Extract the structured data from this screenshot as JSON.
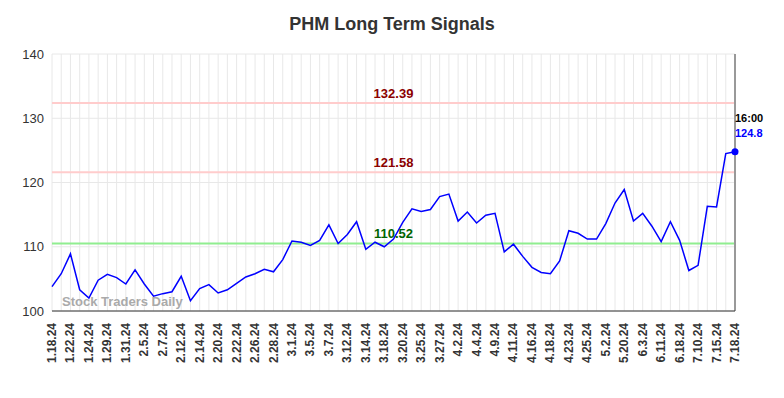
{
  "chart_data": {
    "type": "line",
    "title": "PHM Long Term Signals",
    "watermark": "Stock Traders Daily",
    "last_time": "16:00",
    "color": "#0000ff",
    "grid": true,
    "ylim": [
      100,
      140
    ],
    "yticks": [
      100,
      110,
      120,
      130,
      140
    ],
    "categories": [
      "1.18.24",
      null,
      "1.22.24",
      null,
      "1.24.24",
      null,
      "1.29.24",
      null,
      "1.31.24",
      null,
      "2.5.24",
      null,
      "2.7.24",
      null,
      "2.12.24",
      null,
      "2.14.24",
      null,
      "2.20.24",
      null,
      "2.22.24",
      null,
      "2.26.24",
      null,
      "2.28.24",
      null,
      "3.1.24",
      null,
      "3.5.24",
      null,
      "3.7.24",
      null,
      "3.12.24",
      null,
      "3.14.24",
      null,
      "3.18.24",
      null,
      "3.20.24",
      null,
      "3.25.24",
      null,
      "3.27.24",
      null,
      "4.2.24",
      null,
      "4.4.24",
      null,
      "4.9.24",
      null,
      "4.11.24",
      null,
      "4.16.24",
      null,
      "4.18.24",
      null,
      "4.23.24",
      null,
      "4.25.24",
      null,
      "5.2.24",
      null,
      "5.20.24",
      null,
      "6.3.24",
      null,
      "6.11.24",
      null,
      "6.18.24",
      null,
      "7.10.24",
      null,
      "7.15.24",
      null,
      "7.18.24"
    ],
    "values": [
      103.8,
      105.8,
      108.9,
      103.3,
      102.0,
      104.8,
      105.7,
      105.2,
      104.2,
      106.4,
      104.2,
      102.3,
      102.7,
      103.0,
      105.4,
      101.6,
      103.5,
      104.1,
      102.8,
      103.3,
      104.3,
      105.3,
      105.8,
      106.5,
      106.1,
      108.0,
      110.9,
      110.7,
      110.2,
      111.0,
      113.4,
      110.5,
      111.9,
      113.9,
      109.6,
      110.7,
      110.0,
      111.2,
      113.8,
      115.9,
      115.5,
      115.8,
      117.8,
      118.2,
      114.0,
      115.4,
      113.7,
      114.9,
      115.2,
      109.2,
      110.4,
      108.5,
      106.8,
      106.0,
      105.8,
      107.8,
      112.5,
      112.1,
      111.2,
      111.2,
      113.6,
      116.8,
      118.9,
      114.0,
      115.2,
      113.2,
      110.8,
      113.9,
      111.0,
      106.3,
      107.1,
      116.3,
      116.2,
      124.5,
      124.8
    ],
    "signal_lines": [
      {
        "value": 132.39,
        "color": "#ffcccc",
        "label_color": "#8b0000"
      },
      {
        "value": 121.58,
        "color": "#ffcccc",
        "label_color": "#8b0000"
      },
      {
        "value": 110.52,
        "color": "#90ee90",
        "label_color": "#006400"
      }
    ]
  }
}
